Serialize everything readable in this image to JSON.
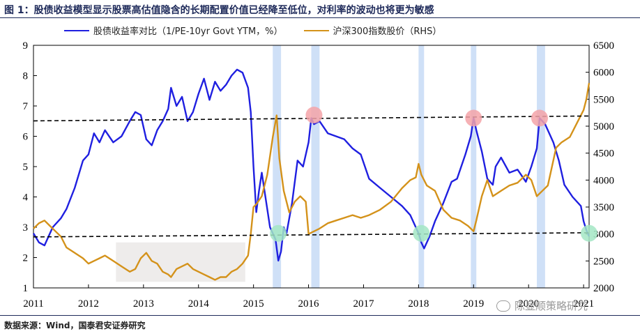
{
  "title": "图 1：股债收益模型显示股票高估值隐含的长期配置价值已经降至低位，对利率的波动也将更为敏感",
  "source": "数据来源：Wind，国泰君安证券研究",
  "watermark": "陈显顺策略研究",
  "colors": {
    "blue": "#1f1fe0",
    "gold": "#d4921a",
    "highlight": "#cfe0f7",
    "shade": "#eeeceb",
    "red_marker": "#f4a3a8",
    "green_marker": "#a3e6c4"
  },
  "chart_data": {
    "type": "line",
    "x_tick_labels": [
      "2011",
      "2012",
      "2013",
      "2014",
      "2015",
      "2016",
      "2017",
      "2018",
      "2019",
      "2020",
      "2021"
    ],
    "y_left": {
      "ticks": [
        1,
        2,
        3,
        4,
        5,
        6,
        7,
        8,
        9
      ],
      "ylim": [
        1,
        9
      ]
    },
    "y_right": {
      "ticks": [
        2000,
        2500,
        3000,
        3500,
        4000,
        4500,
        5000,
        5500,
        6000,
        6500
      ],
      "ylim": [
        2000,
        6500
      ],
      "label": "RHS"
    },
    "grid": false,
    "legend_position": "top",
    "series": [
      {
        "name": "股债收益率对比（1/PE-10yr Govt YTM，%）",
        "axis": "left",
        "color": "#1f1fe0",
        "points": [
          [
            2011.0,
            2.8
          ],
          [
            2011.1,
            2.5
          ],
          [
            2011.2,
            2.4
          ],
          [
            2011.35,
            3.0
          ],
          [
            2011.5,
            3.3
          ],
          [
            2011.6,
            3.6
          ],
          [
            2011.75,
            4.3
          ],
          [
            2011.9,
            5.2
          ],
          [
            2012.0,
            5.4
          ],
          [
            2012.1,
            6.1
          ],
          [
            2012.2,
            5.8
          ],
          [
            2012.3,
            6.2
          ],
          [
            2012.45,
            5.8
          ],
          [
            2012.6,
            6.0
          ],
          [
            2012.75,
            6.5
          ],
          [
            2012.85,
            6.8
          ],
          [
            2012.95,
            6.7
          ],
          [
            2013.05,
            5.9
          ],
          [
            2013.15,
            5.7
          ],
          [
            2013.25,
            6.2
          ],
          [
            2013.35,
            6.5
          ],
          [
            2013.45,
            6.9
          ],
          [
            2013.5,
            7.6
          ],
          [
            2013.6,
            7.0
          ],
          [
            2013.7,
            7.3
          ],
          [
            2013.8,
            6.5
          ],
          [
            2013.9,
            6.8
          ],
          [
            2014.0,
            7.4
          ],
          [
            2014.1,
            7.9
          ],
          [
            2014.2,
            7.2
          ],
          [
            2014.3,
            7.8
          ],
          [
            2014.4,
            7.5
          ],
          [
            2014.5,
            7.7
          ],
          [
            2014.6,
            8.0
          ],
          [
            2014.7,
            8.2
          ],
          [
            2014.8,
            8.1
          ],
          [
            2014.9,
            7.6
          ],
          [
            2014.95,
            6.8
          ],
          [
            2015.0,
            5.0
          ],
          [
            2015.05,
            3.5
          ],
          [
            2015.1,
            4.2
          ],
          [
            2015.15,
            4.8
          ],
          [
            2015.2,
            4.2
          ],
          [
            2015.3,
            3.0
          ],
          [
            2015.4,
            2.6
          ],
          [
            2015.45,
            1.9
          ],
          [
            2015.5,
            2.2
          ],
          [
            2015.55,
            3.0
          ],
          [
            2015.6,
            2.8
          ],
          [
            2015.7,
            3.8
          ],
          [
            2015.8,
            5.2
          ],
          [
            2015.9,
            5.0
          ],
          [
            2016.0,
            5.8
          ],
          [
            2016.05,
            6.6
          ],
          [
            2016.1,
            6.4
          ],
          [
            2016.2,
            6.5
          ],
          [
            2016.35,
            6.1
          ],
          [
            2016.5,
            6.0
          ],
          [
            2016.65,
            5.9
          ],
          [
            2016.8,
            5.6
          ],
          [
            2016.95,
            5.4
          ],
          [
            2017.1,
            4.6
          ],
          [
            2017.3,
            4.3
          ],
          [
            2017.5,
            4.0
          ],
          [
            2017.7,
            3.7
          ],
          [
            2017.85,
            3.4
          ],
          [
            2017.95,
            3.0
          ],
          [
            2018.0,
            2.8
          ],
          [
            2018.05,
            2.5
          ],
          [
            2018.1,
            2.3
          ],
          [
            2018.2,
            2.7
          ],
          [
            2018.3,
            3.2
          ],
          [
            2018.45,
            3.8
          ],
          [
            2018.6,
            4.5
          ],
          [
            2018.7,
            4.6
          ],
          [
            2018.85,
            5.4
          ],
          [
            2018.95,
            6.0
          ],
          [
            2019.0,
            6.6
          ],
          [
            2019.05,
            6.2
          ],
          [
            2019.15,
            5.5
          ],
          [
            2019.25,
            4.6
          ],
          [
            2019.35,
            4.4
          ],
          [
            2019.4,
            5.0
          ],
          [
            2019.5,
            5.3
          ],
          [
            2019.65,
            4.8
          ],
          [
            2019.8,
            4.9
          ],
          [
            2019.95,
            4.5
          ],
          [
            2020.05,
            5.0
          ],
          [
            2020.15,
            5.6
          ],
          [
            2020.2,
            6.6
          ],
          [
            2020.3,
            6.4
          ],
          [
            2020.45,
            5.8
          ],
          [
            2020.55,
            5.2
          ],
          [
            2020.65,
            4.4
          ],
          [
            2020.8,
            4.0
          ],
          [
            2020.95,
            3.7
          ],
          [
            2021.0,
            3.2
          ],
          [
            2021.05,
            2.9
          ],
          [
            2021.1,
            2.7
          ]
        ]
      },
      {
        "name": "沪深300指数股价（RHS）",
        "axis": "right",
        "color": "#d4921a",
        "points": [
          [
            2011.0,
            3100
          ],
          [
            2011.1,
            3200
          ],
          [
            2011.2,
            3250
          ],
          [
            2011.3,
            3150
          ],
          [
            2011.4,
            3050
          ],
          [
            2011.5,
            2950
          ],
          [
            2011.6,
            2750
          ],
          [
            2011.75,
            2650
          ],
          [
            2011.9,
            2550
          ],
          [
            2012.0,
            2450
          ],
          [
            2012.1,
            2500
          ],
          [
            2012.2,
            2550
          ],
          [
            2012.3,
            2600
          ],
          [
            2012.45,
            2500
          ],
          [
            2012.6,
            2400
          ],
          [
            2012.75,
            2300
          ],
          [
            2012.85,
            2350
          ],
          [
            2012.95,
            2550
          ],
          [
            2013.05,
            2650
          ],
          [
            2013.15,
            2500
          ],
          [
            2013.25,
            2450
          ],
          [
            2013.35,
            2300
          ],
          [
            2013.45,
            2250
          ],
          [
            2013.5,
            2200
          ],
          [
            2013.6,
            2350
          ],
          [
            2013.7,
            2400
          ],
          [
            2013.8,
            2450
          ],
          [
            2013.9,
            2350
          ],
          [
            2014.0,
            2300
          ],
          [
            2014.1,
            2250
          ],
          [
            2014.2,
            2200
          ],
          [
            2014.3,
            2150
          ],
          [
            2014.4,
            2200
          ],
          [
            2014.5,
            2200
          ],
          [
            2014.6,
            2300
          ],
          [
            2014.7,
            2350
          ],
          [
            2014.8,
            2450
          ],
          [
            2014.9,
            2600
          ],
          [
            2014.95,
            3000
          ],
          [
            2015.0,
            3500
          ],
          [
            2015.05,
            3550
          ],
          [
            2015.15,
            3700
          ],
          [
            2015.25,
            4100
          ],
          [
            2015.35,
            4800
          ],
          [
            2015.42,
            5200
          ],
          [
            2015.47,
            4400
          ],
          [
            2015.55,
            3800
          ],
          [
            2015.65,
            3400
          ],
          [
            2015.75,
            3600
          ],
          [
            2015.85,
            3700
          ],
          [
            2015.95,
            3600
          ],
          [
            2016.0,
            3000
          ],
          [
            2016.1,
            3050
          ],
          [
            2016.2,
            3100
          ],
          [
            2016.35,
            3200
          ],
          [
            2016.5,
            3250
          ],
          [
            2016.65,
            3300
          ],
          [
            2016.8,
            3350
          ],
          [
            2016.95,
            3300
          ],
          [
            2017.1,
            3350
          ],
          [
            2017.3,
            3450
          ],
          [
            2017.5,
            3600
          ],
          [
            2017.7,
            3850
          ],
          [
            2017.85,
            4000
          ],
          [
            2017.95,
            4050
          ],
          [
            2018.0,
            4300
          ],
          [
            2018.05,
            4100
          ],
          [
            2018.15,
            3900
          ],
          [
            2018.3,
            3800
          ],
          [
            2018.45,
            3450
          ],
          [
            2018.6,
            3300
          ],
          [
            2018.75,
            3250
          ],
          [
            2018.9,
            3150
          ],
          [
            2019.0,
            3050
          ],
          [
            2019.05,
            3250
          ],
          [
            2019.15,
            3700
          ],
          [
            2019.25,
            4000
          ],
          [
            2019.35,
            3700
          ],
          [
            2019.5,
            3800
          ],
          [
            2019.65,
            3900
          ],
          [
            2019.8,
            3950
          ],
          [
            2019.95,
            4100
          ],
          [
            2020.05,
            4000
          ],
          [
            2020.15,
            3700
          ],
          [
            2020.25,
            3800
          ],
          [
            2020.35,
            3900
          ],
          [
            2020.5,
            4600
          ],
          [
            2020.6,
            4700
          ],
          [
            2020.75,
            4800
          ],
          [
            2020.9,
            5100
          ],
          [
            2021.0,
            5300
          ],
          [
            2021.05,
            5500
          ],
          [
            2021.1,
            5800
          ]
        ]
      }
    ],
    "annotations": {
      "upper_dashed_line": 6.6,
      "lower_dashed_line": 2.75,
      "highlight_bands": [
        [
          2015.35,
          2015.5
        ],
        [
          2016.05,
          2016.2
        ],
        [
          2018.0,
          2018.1
        ],
        [
          2018.95,
          2019.05
        ],
        [
          2020.15,
          2020.3
        ]
      ],
      "shaded_region": {
        "x": [
          2012.5,
          2014.85
        ],
        "y": [
          1.2,
          2.5
        ]
      },
      "red_markers": [
        [
          2016.1,
          6.7
        ],
        [
          2019.0,
          6.6
        ],
        [
          2020.2,
          6.6
        ]
      ],
      "green_markers": [
        [
          2015.45,
          2.8
        ],
        [
          2018.05,
          2.8
        ],
        [
          2021.1,
          2.8
        ]
      ]
    }
  }
}
